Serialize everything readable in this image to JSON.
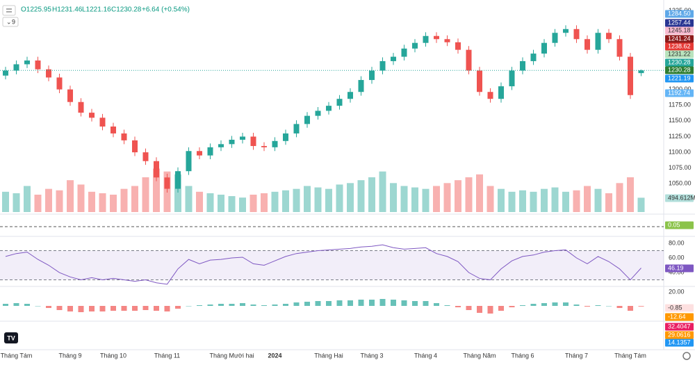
{
  "chart_data": {
    "type": "candlestick",
    "interval": "9",
    "header": [
      "O1225.95",
      "H1231.46",
      "L1221.16",
      "C1230.28",
      "+6.64 (+0.54%)"
    ],
    "up_color": "#26a69a",
    "down_color": "#ef5350",
    "grid": false,
    "ylim": [
      1005,
      1340
    ],
    "yticks": [
      {
        "value": 1325,
        "label": "1325.00"
      },
      {
        "value": 1200,
        "label": "1200.00"
      },
      {
        "value": 1175,
        "label": "1175.00"
      },
      {
        "value": 1150,
        "label": "1150.00"
      },
      {
        "value": 1125,
        "label": "1125.00"
      },
      {
        "value": 1100,
        "label": "1100.00"
      },
      {
        "value": 1075,
        "label": "1075.00"
      },
      {
        "value": 1050,
        "label": "1050.00"
      }
    ],
    "categories": [
      null,
      "Tháng Tám",
      null,
      null,
      null,
      null,
      "Tháng 9",
      null,
      null,
      null,
      "Tháng 10",
      null,
      null,
      null,
      null,
      "Tháng 11",
      null,
      null,
      null,
      null,
      null,
      "Tháng Mười hai",
      null,
      null,
      null,
      "2024",
      null,
      null,
      null,
      null,
      "Tháng Hai",
      null,
      null,
      null,
      "Tháng 3",
      null,
      null,
      null,
      null,
      "Tháng 4",
      null,
      null,
      null,
      null,
      "Tháng Năm",
      null,
      null,
      null,
      "Tháng 6",
      null,
      null,
      null,
      null,
      "Tháng 7",
      null,
      null,
      null,
      null,
      "Tháng Tám",
      null
    ],
    "ohlc": [
      [
        1222,
        1236,
        1216,
        1230
      ],
      [
        1230,
        1246,
        1224,
        1240
      ],
      [
        1240,
        1252,
        1234,
        1246
      ],
      [
        1246,
        1252,
        1226,
        1232
      ],
      [
        1232,
        1238,
        1213,
        1219
      ],
      [
        1219,
        1225,
        1194,
        1200
      ],
      [
        1200,
        1206,
        1174,
        1180
      ],
      [
        1180,
        1186,
        1157,
        1163
      ],
      [
        1163,
        1169,
        1149,
        1155
      ],
      [
        1155,
        1161,
        1135,
        1141
      ],
      [
        1141,
        1147,
        1124,
        1130
      ],
      [
        1130,
        1136,
        1113,
        1119
      ],
      [
        1119,
        1125,
        1094,
        1100
      ],
      [
        1100,
        1106,
        1080,
        1086
      ],
      [
        1086,
        1092,
        1054,
        1060
      ],
      [
        1060,
        1066,
        1036,
        1042
      ],
      [
        1042,
        1076,
        1036,
        1070
      ],
      [
        1070,
        1108,
        1064,
        1102
      ],
      [
        1102,
        1108,
        1089,
        1095
      ],
      [
        1095,
        1114,
        1089,
        1108
      ],
      [
        1108,
        1119,
        1102,
        1113
      ],
      [
        1113,
        1126,
        1107,
        1120
      ],
      [
        1120,
        1131,
        1114,
        1125
      ],
      [
        1125,
        1131,
        1104,
        1110
      ],
      [
        1110,
        1116,
        1102,
        1108
      ],
      [
        1108,
        1124,
        1102,
        1118
      ],
      [
        1118,
        1136,
        1112,
        1130
      ],
      [
        1130,
        1151,
        1124,
        1145
      ],
      [
        1145,
        1164,
        1139,
        1158
      ],
      [
        1158,
        1172,
        1152,
        1166
      ],
      [
        1166,
        1180,
        1160,
        1174
      ],
      [
        1174,
        1191,
        1168,
        1185
      ],
      [
        1185,
        1202,
        1179,
        1196
      ],
      [
        1196,
        1221,
        1190,
        1215
      ],
      [
        1215,
        1236,
        1209,
        1230
      ],
      [
        1230,
        1251,
        1224,
        1245
      ],
      [
        1245,
        1258,
        1239,
        1252
      ],
      [
        1252,
        1271,
        1246,
        1265
      ],
      [
        1265,
        1280,
        1259,
        1274
      ],
      [
        1274,
        1291,
        1268,
        1285
      ],
      [
        1285,
        1291,
        1274,
        1280
      ],
      [
        1280,
        1286,
        1269,
        1275
      ],
      [
        1275,
        1281,
        1257,
        1263
      ],
      [
        1263,
        1269,
        1224,
        1230
      ],
      [
        1230,
        1236,
        1190,
        1196
      ],
      [
        1196,
        1202,
        1179,
        1185
      ],
      [
        1185,
        1211,
        1179,
        1205
      ],
      [
        1205,
        1236,
        1199,
        1230
      ],
      [
        1230,
        1251,
        1224,
        1245
      ],
      [
        1245,
        1263,
        1239,
        1257
      ],
      [
        1257,
        1280,
        1251,
        1274
      ],
      [
        1274,
        1296,
        1268,
        1290
      ],
      [
        1290,
        1302,
        1284,
        1296
      ],
      [
        1296,
        1302,
        1274,
        1280
      ],
      [
        1280,
        1286,
        1257,
        1263
      ],
      [
        1263,
        1296,
        1257,
        1290
      ],
      [
        1290,
        1296,
        1274,
        1280
      ],
      [
        1280,
        1286,
        1246,
        1252
      ],
      [
        1252,
        1258,
        1185,
        1191
      ],
      [
        1225.95,
        1231.46,
        1221.16,
        1230.28
      ]
    ],
    "volume": {
      "vlim": [
        0,
        1800
      ],
      "values": [
        700,
        650,
        900,
        600,
        800,
        750,
        1100,
        950,
        700,
        650,
        600,
        800,
        900,
        1200,
        1500,
        1400,
        1300,
        900,
        700,
        650,
        600,
        550,
        500,
        600,
        650,
        700,
        750,
        800,
        900,
        850,
        800,
        950,
        1000,
        1100,
        1200,
        1400,
        1000,
        900,
        850,
        800,
        900,
        1000,
        1100,
        1200,
        1300,
        900,
        800,
        700,
        750,
        700,
        800,
        850,
        700,
        750,
        900,
        800,
        650,
        1000,
        1200,
        494.612
      ]
    },
    "rsi": {
      "color": "#7e57c2",
      "ylim": [
        21,
        89.5
      ],
      "yticks": [
        {
          "value": 80,
          "label": "80.00"
        },
        {
          "value": 60,
          "label": "60.00"
        },
        {
          "value": 40,
          "label": "40.00"
        }
      ],
      "bands": [
        70,
        30
      ],
      "values": [
        62,
        66,
        68,
        58,
        50,
        40,
        34,
        30,
        33,
        30,
        32,
        30,
        28,
        30,
        26,
        24,
        45,
        58,
        52,
        57,
        58,
        60,
        61,
        52,
        50,
        56,
        62,
        66,
        68,
        70,
        71,
        72,
        73,
        75,
        76,
        78,
        74,
        72,
        73,
        74,
        66,
        62,
        55,
        40,
        32,
        30,
        45,
        56,
        62,
        64,
        68,
        70,
        71,
        60,
        52,
        62,
        55,
        45,
        30,
        46.19
      ]
    },
    "macd": {
      "ylim": [
        -20,
        25
      ],
      "yticks": [
        {
          "value": 20,
          "label": "20.00"
        }
      ],
      "hist": [
        3,
        4,
        3,
        0,
        -3,
        -6,
        -8,
        -9,
        -8,
        -8,
        -7,
        -7,
        -7,
        -6,
        -7,
        -8,
        -4,
        0,
        1,
        2,
        3,
        3,
        4,
        2,
        1,
        2,
        3,
        5,
        6,
        7,
        7,
        8,
        8,
        9,
        9,
        10,
        9,
        8,
        7,
        7,
        4,
        1,
        -2,
        -6,
        -10,
        -11,
        -7,
        -2,
        1,
        3,
        4,
        5,
        5,
        2,
        -1,
        1,
        0,
        -3,
        -7,
        -0.85
      ]
    },
    "price_labels": [
      {
        "label": "1284.50",
        "color": "#5ea8e8",
        "text_color": "#ffffff"
      },
      {
        "label": "1257.44",
        "color": "#283593",
        "text_color": "#ffffff"
      },
      {
        "label": "1245.18",
        "color": "#f8bbd0",
        "text_color": "#333333"
      },
      {
        "label": "1241.24",
        "color": "#8e1b1b",
        "text_color": "#ffffff"
      },
      {
        "label": "1238.62",
        "color": "#e53935",
        "text_color": "#ffffff"
      },
      {
        "label": "1231.22",
        "color": "#b9e3bd",
        "text_color": "#333333"
      },
      {
        "label": "1230.28",
        "color": "#26a69a",
        "text_color": "#ffffff"
      },
      {
        "label": "1230.28",
        "color": "#2e7d32",
        "text_color": "#ffffff"
      },
      {
        "label": "1221.19",
        "color": "#2196f3",
        "text_color": "#ffffff"
      },
      {
        "label": "1192.74",
        "color": "#64b5f6",
        "text_color": "#ffffff"
      },
      {
        "label": "494.612M",
        "color": "#b2dfdb",
        "text_color": "#333333"
      },
      {
        "label": "0.05",
        "color": "#8bc34a",
        "text_color": "#ffffff"
      },
      {
        "label": "46.19",
        "color": "#7e57c2",
        "text_color": "#ffffff"
      },
      {
        "label": "-0.85",
        "color": "#fde0e0",
        "text_color": "#333333"
      },
      {
        "label": "-12.64",
        "color": "#ff9800",
        "text_color": "#ffffff"
      },
      {
        "label": "32.4047",
        "color": "#e91e63",
        "text_color": "#ffffff"
      },
      {
        "label": "29.0616",
        "color": "#ff9800",
        "text_color": "#ffffff"
      },
      {
        "label": "14.1357",
        "color": "#2196f3",
        "text_color": "#ffffff"
      }
    ]
  }
}
